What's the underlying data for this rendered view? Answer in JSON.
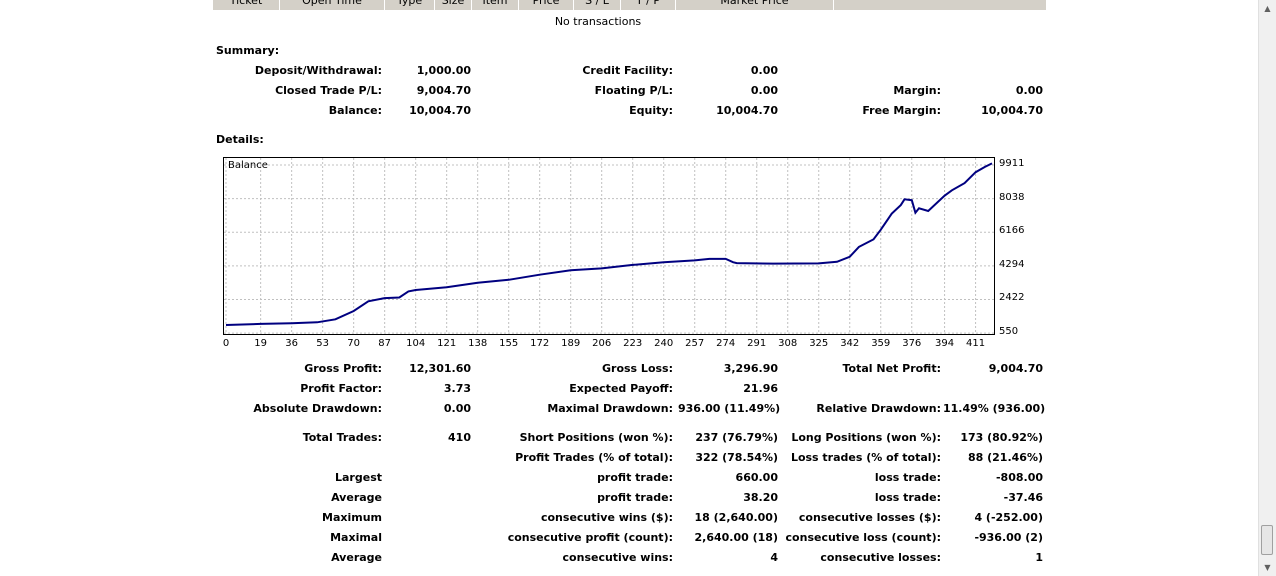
{
  "table_header": [
    "Ticket",
    "Open Time",
    "Type",
    "Size",
    "Item",
    "Price",
    "S / L",
    "T / P",
    "Market Price",
    ""
  ],
  "no_transactions": "No transactions",
  "summary": {
    "title": "Summary:",
    "deposit_label": "Deposit/Withdrawal:",
    "deposit_value": "1,000.00",
    "credit_label": "Credit Facility:",
    "credit_value": "0.00",
    "closed_label": "Closed Trade P/L:",
    "closed_value": "9,004.70",
    "floating_label": "Floating P/L:",
    "floating_value": "0.00",
    "margin_label": "Margin:",
    "margin_value": "0.00",
    "balance_label": "Balance:",
    "balance_value": "10,004.70",
    "equity_label": "Equity:",
    "equity_value": "10,004.70",
    "free_margin_label": "Free Margin:",
    "free_margin_value": "10,004.70"
  },
  "details": {
    "title": "Details:",
    "gross_profit_label": "Gross Profit:",
    "gross_profit_value": "12,301.60",
    "gross_loss_label": "Gross Loss:",
    "gross_loss_value": "3,296.90",
    "total_net_label": "Total Net Profit:",
    "total_net_value": "9,004.70",
    "profit_factor_label": "Profit Factor:",
    "profit_factor_value": "3.73",
    "expected_payoff_label": "Expected Payoff:",
    "expected_payoff_value": "21.96",
    "abs_dd_label": "Absolute Drawdown:",
    "abs_dd_value": "0.00",
    "max_dd_label": "Maximal Drawdown:",
    "max_dd_value": "936.00 (11.49%)",
    "rel_dd_label": "Relative Drawdown:",
    "rel_dd_value": "11.49% (936.00)",
    "total_trades_label": "Total Trades:",
    "total_trades_value": "410",
    "short_label": "Short Positions (won %):",
    "short_value": "237 (76.79%)",
    "long_label": "Long Positions (won %):",
    "long_value": "173 (80.92%)",
    "profit_trades_label": "Profit Trades (% of total):",
    "profit_trades_value": "322 (78.54%)",
    "loss_trades_label": "Loss trades (% of total):",
    "loss_trades_value": "88 (21.46%)",
    "largest_label": "Largest",
    "largest_profit_label": "profit trade:",
    "largest_profit_value": "660.00",
    "largest_loss_label": "loss trade:",
    "largest_loss_value": "-808.00",
    "average_label": "Average",
    "average_profit_label": "profit trade:",
    "average_profit_value": "38.20",
    "average_loss_label": "loss trade:",
    "average_loss_value": "-37.46",
    "maximum_label": "Maximum",
    "max_cons_wins_label": "consecutive wins ($):",
    "max_cons_wins_value": "18 (2,640.00)",
    "max_cons_losses_label": "consecutive losses ($):",
    "max_cons_losses_value": "4 (-252.00)",
    "maximal_label": "Maximal",
    "maximal_profit_label": "consecutive profit (count):",
    "maximal_profit_value": "2,640.00 (18)",
    "maximal_loss_label": "consecutive loss (count):",
    "maximal_loss_value": "-936.00 (2)",
    "average2_label": "Average",
    "avg_cons_wins_label": "consecutive wins:",
    "avg_cons_wins_value": "4",
    "avg_cons_losses_label": "consecutive losses:",
    "avg_cons_losses_value": "1"
  },
  "chart_data": {
    "type": "line",
    "title": "Balance",
    "series_color": "#000080",
    "grid": true,
    "xlim": [
      0,
      420
    ],
    "ylim": [
      500,
      10300
    ],
    "x_ticks": [
      "0",
      "19",
      "36",
      "53",
      "70",
      "87",
      "104",
      "121",
      "138",
      "155",
      "172",
      "189",
      "206",
      "223",
      "240",
      "257",
      "274",
      "291",
      "308",
      "325",
      "342",
      "359",
      "376",
      "394",
      "411"
    ],
    "y_ticks": [
      "550",
      "2422",
      "4294",
      "6166",
      "8038",
      "9911"
    ],
    "x": [
      0,
      19,
      36,
      50,
      60,
      70,
      78,
      87,
      95,
      100,
      104,
      121,
      138,
      155,
      172,
      189,
      206,
      223,
      240,
      257,
      265,
      274,
      278,
      280,
      300,
      325,
      335,
      342,
      347,
      355,
      359,
      365,
      370,
      372,
      376,
      378,
      380,
      385,
      394,
      398,
      405,
      411,
      416,
      420
    ],
    "y": [
      1000,
      1060,
      1100,
      1150,
      1320,
      1780,
      2320,
      2500,
      2530,
      2870,
      2950,
      3100,
      3350,
      3520,
      3800,
      4050,
      4150,
      4350,
      4500,
      4600,
      4680,
      4680,
      4500,
      4450,
      4420,
      4430,
      4520,
      4800,
      5350,
      5770,
      6300,
      7200,
      7680,
      8000,
      7950,
      7250,
      7500,
      7350,
      8200,
      8500,
      8900,
      9511,
      9800,
      10000
    ]
  }
}
